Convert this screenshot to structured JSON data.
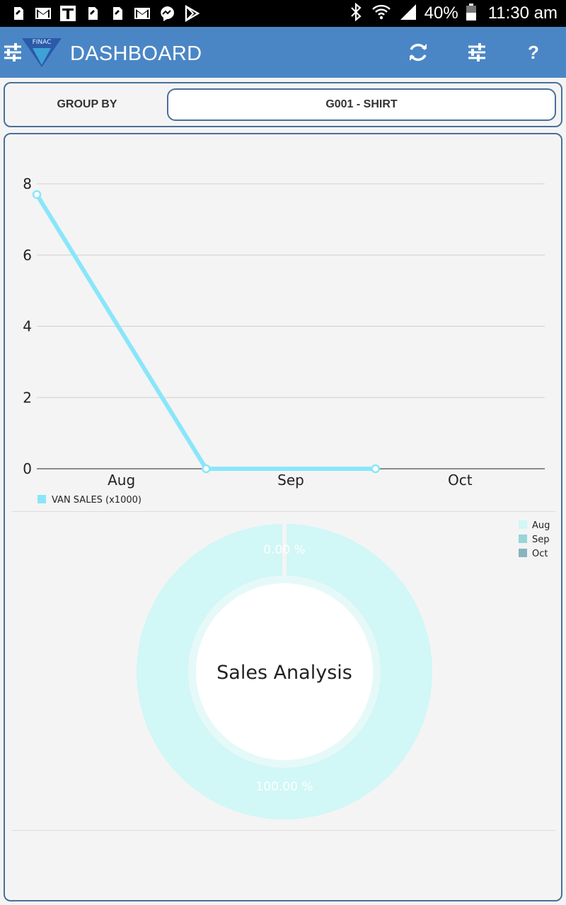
{
  "status_bar": {
    "notification_icons": [
      "sd-card-icon",
      "gmail-icon",
      "news-icon",
      "sd-card-icon",
      "sd-card-icon",
      "gmail-icon",
      "messenger-icon",
      "play-store-icon"
    ],
    "battery_text": "40%",
    "time": "11:30 am"
  },
  "app_bar": {
    "title": "DASHBOARD",
    "logo_text": "FINAC",
    "help_label": "?"
  },
  "group_by": {
    "label": "GROUP BY",
    "selected": "G001 - SHIRT"
  },
  "chart_data": [
    {
      "type": "line",
      "categories": [
        "Aug",
        "Sep",
        "Oct"
      ],
      "series": [
        {
          "name": "VAN SALES (x1000)",
          "color": "#8ae6fa",
          "values": [
            7.7,
            0,
            0
          ]
        }
      ],
      "y_ticks": [
        "0",
        "2",
        "4",
        "6",
        "8"
      ],
      "ylim": [
        0,
        8
      ],
      "grid": true,
      "legend": "bottom-left"
    },
    {
      "type": "pie",
      "center_label": "Sales Analysis",
      "labels": [
        "Aug",
        "Sep",
        "Oct"
      ],
      "colors": [
        "#d1f7f6",
        "#97d5d6",
        "#88b4bf"
      ],
      "slice_labels": [
        "0.00 %",
        "100.00 %"
      ],
      "legend": "top-right"
    }
  ]
}
